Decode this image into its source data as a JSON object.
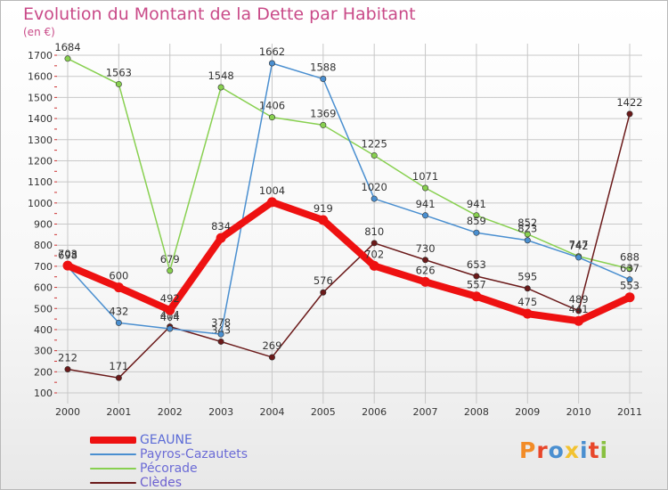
{
  "title": "Evolution du Montant de la Dette par Habitant",
  "unit_label": "(en €)",
  "logo_text": "Proxiti",
  "colors": {
    "title": "#c94a88",
    "grid": "#c8c8c8",
    "axis_tick": "#cc3333"
  },
  "chart_data": {
    "type": "line",
    "title": "Evolution du Montant de la Dette par Habitant",
    "ylabel": "(en €)",
    "xlabel": "",
    "x": [
      "2000",
      "2001",
      "2002",
      "2003",
      "2004",
      "2005",
      "2006",
      "2007",
      "2008",
      "2009",
      "2010",
      "2011"
    ],
    "ylim": [
      100,
      1700
    ],
    "yticks": [
      100,
      200,
      300,
      400,
      500,
      600,
      700,
      800,
      900,
      1000,
      1100,
      1200,
      1300,
      1400,
      1500,
      1600,
      1700
    ],
    "grid": true,
    "legend_position": "bottom-left",
    "series": [
      {
        "name": "GEAUNE",
        "color": "#ee1111",
        "width": 8,
        "values": [
          703,
          600,
          492,
          834,
          1004,
          919,
          702,
          626,
          557,
          475,
          441,
          553
        ]
      },
      {
        "name": "Payros-Cazautets",
        "color": "#4a8fd0",
        "width": 1.5,
        "values": [
          698,
          432,
          404,
          378,
          1662,
          1588,
          1020,
          941,
          859,
          823,
          742,
          637
        ]
      },
      {
        "name": "Pécorade",
        "color": "#88d050",
        "width": 1.5,
        "values": [
          1684,
          1563,
          679,
          1548,
          1406,
          1369,
          1225,
          1071,
          941,
          852,
          747,
          688
        ]
      },
      {
        "name": "Clèdes",
        "color": "#6b1a1a",
        "width": 1.5,
        "values": [
          212,
          171,
          414,
          343,
          269,
          576,
          810,
          730,
          653,
          595,
          489,
          1422
        ]
      }
    ]
  }
}
